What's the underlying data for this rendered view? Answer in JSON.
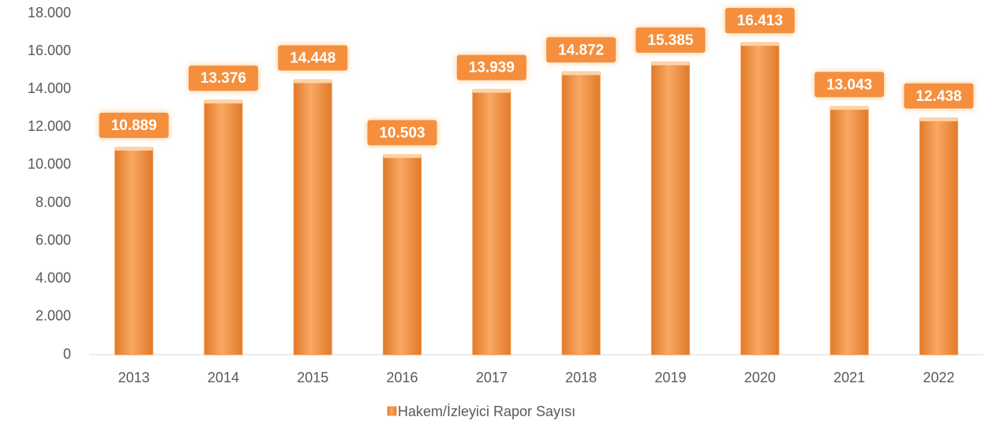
{
  "chart_data": {
    "type": "bar",
    "categories": [
      "2013",
      "2014",
      "2015",
      "2016",
      "2017",
      "2018",
      "2019",
      "2020",
      "2021",
      "2022"
    ],
    "series": [
      {
        "name": "Hakem/İzleyici Rapor Sayısı",
        "color": "#f58f3c",
        "values": [
          10889,
          13376,
          14448,
          10503,
          13939,
          14872,
          15385,
          16413,
          13043,
          12438
        ],
        "value_labels": [
          "10.889",
          "13.376",
          "14.448",
          "10.503",
          "13.939",
          "14.872",
          "15.385",
          "16.413",
          "13.043",
          "12.438"
        ]
      }
    ],
    "ylim": [
      0,
      18000
    ],
    "yticks": [
      0,
      {
        "value": 2000,
        "label": "2.000"
      },
      {
        "value": 4000,
        "label": "4.000"
      },
      {
        "value": 6000,
        "label": "6.000"
      },
      {
        "value": 8000,
        "label": "8.000"
      },
      {
        "value": 10000,
        "label": "10.000"
      },
      {
        "value": 12000,
        "label": "12.000"
      },
      {
        "value": 14000,
        "label": "14.000"
      },
      {
        "value": 16000,
        "label": "16.000"
      },
      {
        "value": 18000,
        "label": "18.000"
      }
    ],
    "grid": false,
    "legend": "bottom"
  }
}
